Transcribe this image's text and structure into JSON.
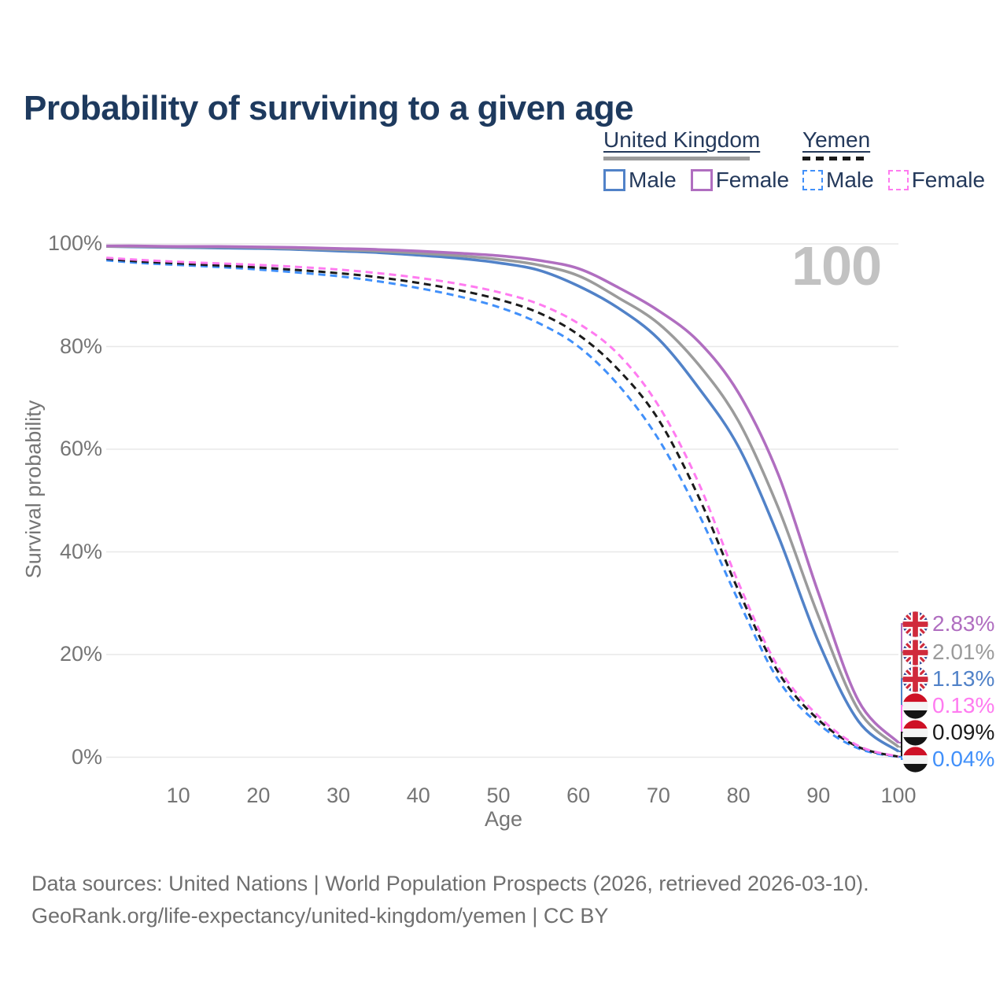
{
  "title": "Probability of surviving to a given age",
  "watermark_label": "100",
  "legend": {
    "groups": [
      {
        "label": "United Kingdom",
        "line_style": "solid",
        "line_color": "#9b9b9b",
        "items": [
          {
            "label": "Male",
            "line_style": "solid",
            "color": "#5182c8"
          },
          {
            "label": "Female",
            "line_style": "solid",
            "color": "#b06ec0"
          }
        ]
      },
      {
        "label": "Yemen",
        "line_style": "dashed",
        "line_color": "#1b1b1b",
        "items": [
          {
            "label": "Male",
            "line_style": "dashed",
            "color": "#4190fa"
          },
          {
            "label": "Female",
            "line_style": "dashed",
            "color": "#ff7bf0"
          }
        ]
      }
    ]
  },
  "chart_data": {
    "type": "line",
    "title": "Probability of surviving to a given age",
    "xlabel": "Age",
    "ylabel": "Survival probability",
    "xlim": [
      1,
      100
    ],
    "ylim": [
      0,
      100
    ],
    "grid": "horizontal-only",
    "legend_position": "top-right",
    "highlight_age": 100,
    "x_ticks": [
      10,
      20,
      30,
      40,
      50,
      60,
      70,
      80,
      90,
      100
    ],
    "y_ticks": [
      {
        "label": "0%",
        "value": 0
      },
      {
        "label": "20%",
        "value": 20
      },
      {
        "label": "40%",
        "value": 40
      },
      {
        "label": "60%",
        "value": 60
      },
      {
        "label": "80%",
        "value": 80
      },
      {
        "label": "100%",
        "value": 100
      }
    ],
    "ages": [
      1,
      5,
      10,
      15,
      20,
      25,
      30,
      35,
      40,
      45,
      50,
      55,
      60,
      65,
      70,
      75,
      80,
      85,
      90,
      95,
      100
    ],
    "series": [
      {
        "name": "United Kingdom – Female",
        "country": "United Kingdom",
        "sex": "Female",
        "line_style": "solid",
        "color": "#b06ec0",
        "flag": "uk",
        "end_label": "2.83%",
        "values": [
          99.6,
          99.6,
          99.5,
          99.5,
          99.4,
          99.3,
          99.1,
          98.9,
          98.6,
          98.2,
          97.7,
          96.8,
          95.2,
          91.5,
          87.0,
          81.0,
          71.0,
          55.0,
          32.0,
          11.0,
          2.83
        ]
      },
      {
        "name": "United Kingdom – Overall",
        "country": "United Kingdom",
        "sex": "Overall",
        "line_style": "solid",
        "color": "#9b9b9b",
        "flag": "uk",
        "end_label": "2.01%",
        "values": [
          99.5,
          99.5,
          99.4,
          99.4,
          99.3,
          99.1,
          98.9,
          98.6,
          98.2,
          97.7,
          97.0,
          95.9,
          93.8,
          89.5,
          84.5,
          76.5,
          65.5,
          48.5,
          27.5,
          9.2,
          2.01
        ]
      },
      {
        "name": "United Kingdom – Male",
        "country": "United Kingdom",
        "sex": "Male",
        "line_style": "solid",
        "color": "#5182c8",
        "flag": "uk",
        "end_label": "1.13%",
        "values": [
          99.5,
          99.4,
          99.3,
          99.2,
          99.1,
          98.9,
          98.6,
          98.3,
          97.8,
          97.2,
          96.3,
          94.9,
          91.8,
          87.5,
          81.5,
          72.0,
          60.5,
          43.0,
          22.5,
          7.0,
          1.13
        ]
      },
      {
        "name": "Yemen – Female",
        "country": "Yemen",
        "sex": "Female",
        "line_style": "dashed",
        "color": "#ff7bf0",
        "flag": "yemen",
        "end_label": "0.13%",
        "values": [
          97.3,
          96.9,
          96.5,
          96.2,
          95.9,
          95.5,
          95.0,
          94.3,
          93.4,
          92.2,
          90.6,
          88.3,
          84.5,
          78.5,
          68.5,
          53.5,
          34.0,
          17.5,
          8.0,
          2.2,
          0.13
        ]
      },
      {
        "name": "Yemen – Overall",
        "country": "Yemen",
        "sex": "Overall",
        "line_style": "dashed",
        "color": "#1b1b1b",
        "flag": "yemen",
        "end_label": "0.09%",
        "values": [
          97.1,
          96.6,
          96.2,
          95.8,
          95.4,
          94.9,
          94.3,
          93.5,
          92.4,
          91.0,
          89.2,
          86.6,
          82.3,
          75.5,
          65.8,
          50.8,
          32.5,
          16.5,
          7.3,
          2.0,
          0.09
        ]
      },
      {
        "name": "Yemen – Male",
        "country": "Yemen",
        "sex": "Male",
        "line_style": "dashed",
        "color": "#4190fa",
        "flag": "yemen",
        "end_label": "0.04%",
        "values": [
          96.8,
          96.3,
          95.9,
          95.5,
          95.0,
          94.4,
          93.7,
          92.7,
          91.4,
          89.8,
          87.7,
          84.6,
          80.0,
          72.5,
          62.0,
          47.5,
          30.5,
          15.0,
          6.5,
          1.7,
          0.04
        ]
      }
    ]
  },
  "footer": {
    "line1": "Data sources: United Nations | World Population Prospects (2026, retrieved 2026-03-10).",
    "line2": "GeoRank.org/life-expectancy/united-kingdom/yemen | CC BY"
  }
}
